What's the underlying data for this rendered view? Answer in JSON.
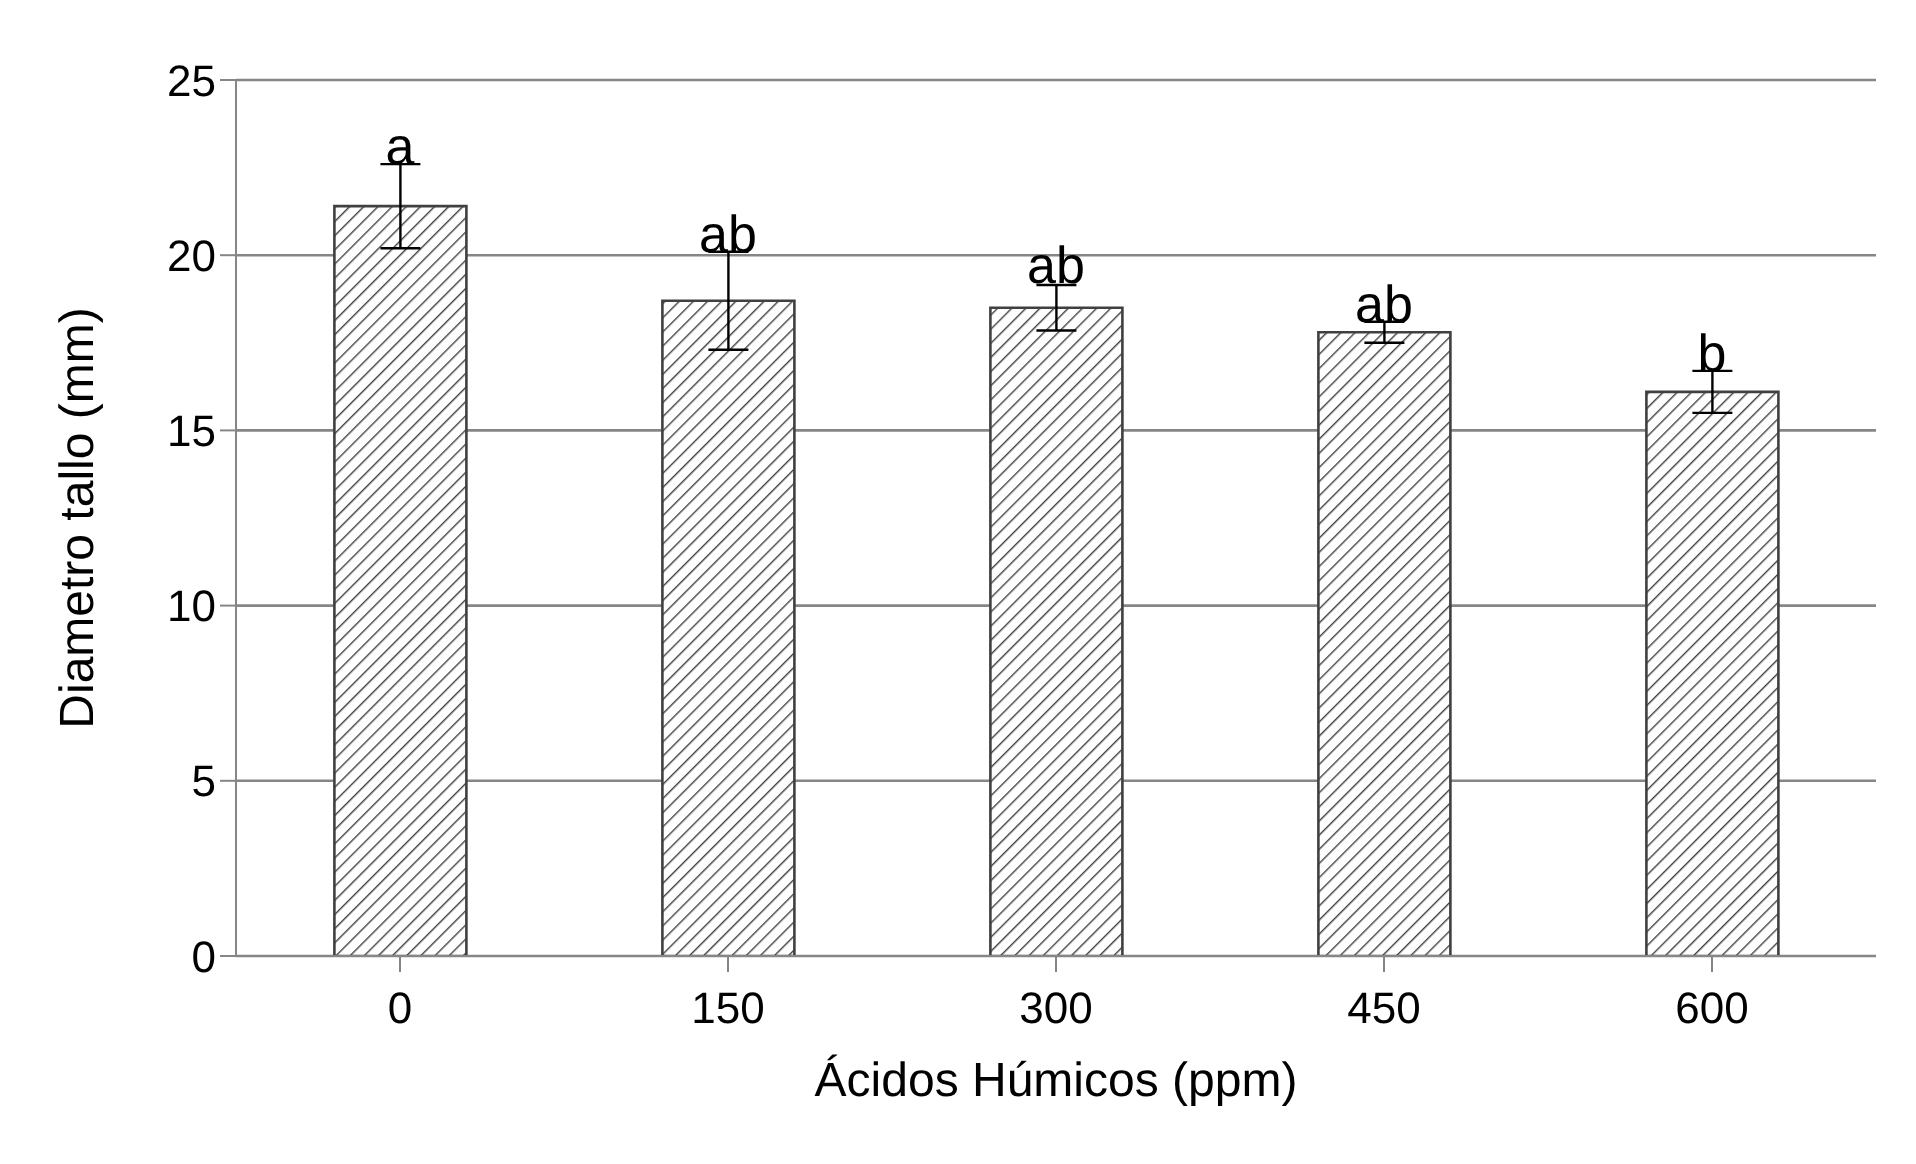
{
  "chart_data": {
    "type": "bar",
    "xlabel": "Ácidos Húmicos (ppm)",
    "ylabel": "Diametro tallo (mm)",
    "categories": [
      "0",
      "150",
      "300",
      "450",
      "600"
    ],
    "values": [
      21.4,
      18.7,
      18.5,
      17.8,
      16.1
    ],
    "errors": [
      1.2,
      1.4,
      0.65,
      0.3,
      0.6
    ],
    "color": "#404040",
    "ylim": [
      0,
      25
    ],
    "yticks": [
      0,
      5,
      10,
      15,
      20,
      25
    ],
    "grid": "y",
    "annotations": [
      {
        "text": "a",
        "x": "0",
        "y": 22.6
      },
      {
        "text": "ab",
        "x": "150",
        "y": 20.1
      },
      {
        "text": "ab",
        "x": "300",
        "y": 19.2
      },
      {
        "text": "ab",
        "x": "450",
        "y": 18.1
      },
      {
        "text": "b",
        "x": "600",
        "y": 16.7
      }
    ]
  }
}
